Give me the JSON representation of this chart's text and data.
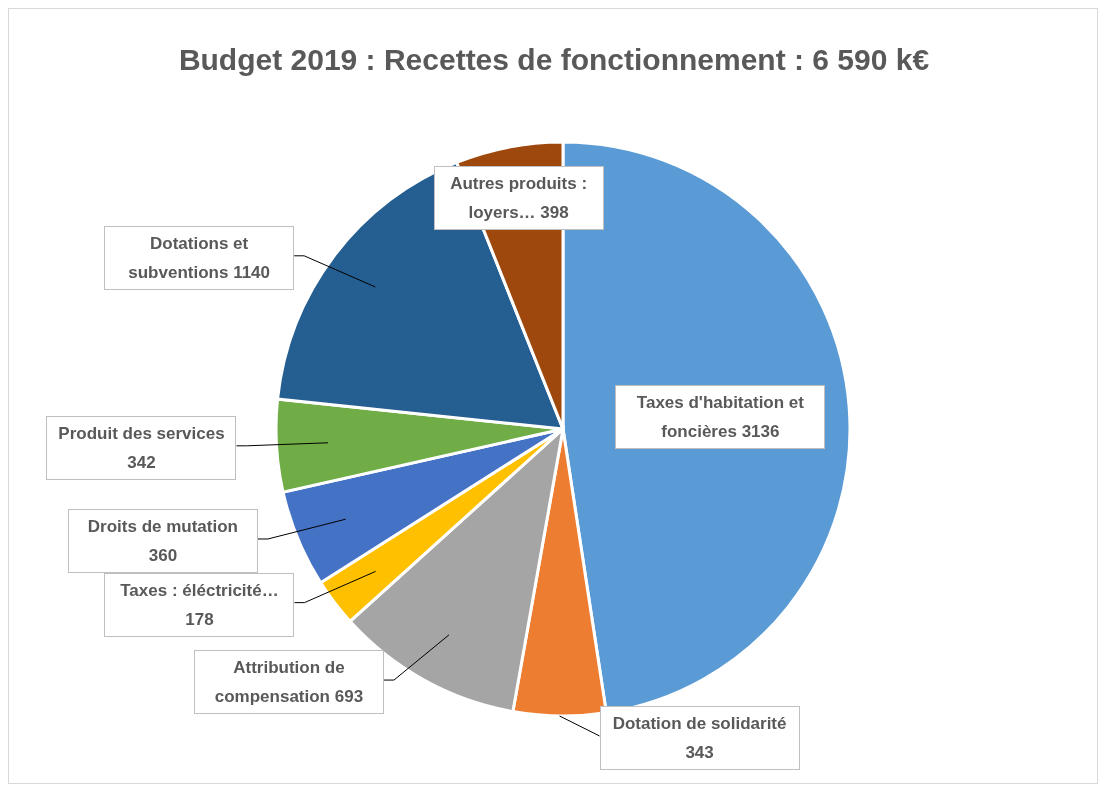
{
  "chart_data": {
    "type": "pie",
    "title": "Budget 2019 : Recettes de fonctionnement : 6 590 k€",
    "categories": [
      "Taxes d'habitation et foncières",
      "Dotation de solidarité",
      "Attribution de compensation",
      "Taxes : éléctricité…",
      "Droits de mutation",
      "Produit des services",
      "Dotations et subventions",
      "Autres produits : loyers…"
    ],
    "values": [
      3136,
      343,
      693,
      178,
      360,
      342,
      1140,
      398
    ],
    "colors": [
      "#5b9bd5",
      "#ed7d31",
      "#a5a5a5",
      "#ffc000",
      "#4472c4",
      "#70ad47",
      "#255e91",
      "#9e480e"
    ],
    "data_labels": true,
    "legend": false
  }
}
